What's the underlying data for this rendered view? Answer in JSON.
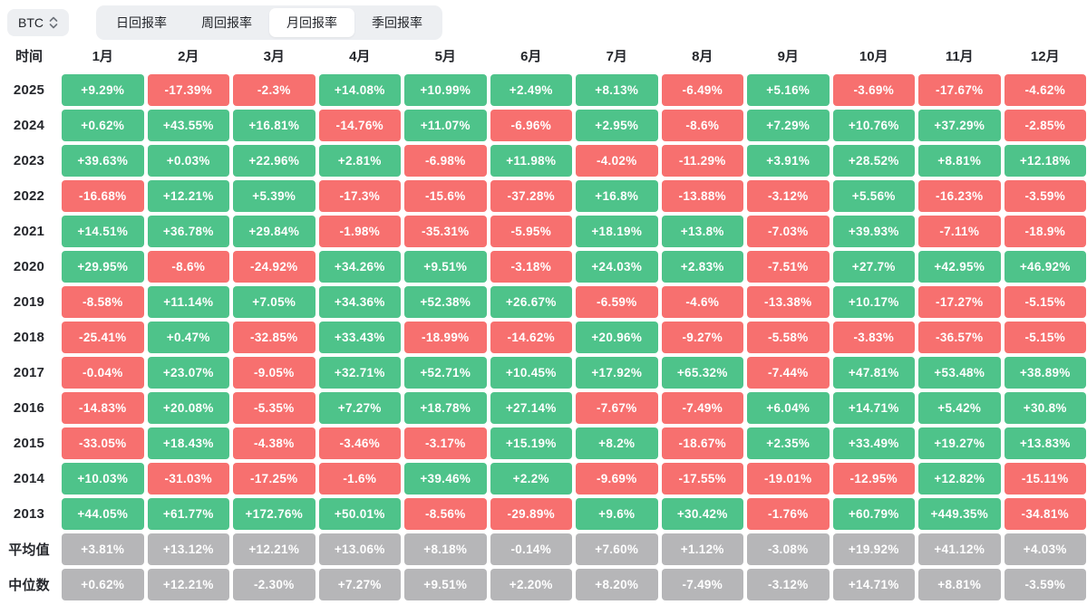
{
  "toolbar": {
    "coin_selector": {
      "label": "BTC"
    },
    "tabs": [
      {
        "label": "日回报率",
        "active": false
      },
      {
        "label": "周回报率",
        "active": false
      },
      {
        "label": "月回报率",
        "active": true
      },
      {
        "label": "季回报率",
        "active": false
      }
    ]
  },
  "table": {
    "time_header": "时间",
    "months": [
      "1月",
      "2月",
      "3月",
      "4月",
      "5月",
      "6月",
      "7月",
      "8月",
      "9月",
      "10月",
      "11月",
      "12月"
    ],
    "rows": [
      {
        "label": "2025",
        "type": "year",
        "values": [
          "+9.29%",
          "-17.39%",
          "-2.3%",
          "+14.08%",
          "+10.99%",
          "+2.49%",
          "+8.13%",
          "-6.49%",
          "+5.16%",
          "-3.69%",
          "-17.67%",
          "-4.62%"
        ]
      },
      {
        "label": "2024",
        "type": "year",
        "values": [
          "+0.62%",
          "+43.55%",
          "+16.81%",
          "-14.76%",
          "+11.07%",
          "-6.96%",
          "+2.95%",
          "-8.6%",
          "+7.29%",
          "+10.76%",
          "+37.29%",
          "-2.85%"
        ]
      },
      {
        "label": "2023",
        "type": "year",
        "values": [
          "+39.63%",
          "+0.03%",
          "+22.96%",
          "+2.81%",
          "-6.98%",
          "+11.98%",
          "-4.02%",
          "-11.29%",
          "+3.91%",
          "+28.52%",
          "+8.81%",
          "+12.18%"
        ]
      },
      {
        "label": "2022",
        "type": "year",
        "values": [
          "-16.68%",
          "+12.21%",
          "+5.39%",
          "-17.3%",
          "-15.6%",
          "-37.28%",
          "+16.8%",
          "-13.88%",
          "-3.12%",
          "+5.56%",
          "-16.23%",
          "-3.59%"
        ]
      },
      {
        "label": "2021",
        "type": "year",
        "values": [
          "+14.51%",
          "+36.78%",
          "+29.84%",
          "-1.98%",
          "-35.31%",
          "-5.95%",
          "+18.19%",
          "+13.8%",
          "-7.03%",
          "+39.93%",
          "-7.11%",
          "-18.9%"
        ]
      },
      {
        "label": "2020",
        "type": "year",
        "values": [
          "+29.95%",
          "-8.6%",
          "-24.92%",
          "+34.26%",
          "+9.51%",
          "-3.18%",
          "+24.03%",
          "+2.83%",
          "-7.51%",
          "+27.7%",
          "+42.95%",
          "+46.92%"
        ]
      },
      {
        "label": "2019",
        "type": "year",
        "values": [
          "-8.58%",
          "+11.14%",
          "+7.05%",
          "+34.36%",
          "+52.38%",
          "+26.67%",
          "-6.59%",
          "-4.6%",
          "-13.38%",
          "+10.17%",
          "-17.27%",
          "-5.15%"
        ]
      },
      {
        "label": "2018",
        "type": "year",
        "values": [
          "-25.41%",
          "+0.47%",
          "-32.85%",
          "+33.43%",
          "-18.99%",
          "-14.62%",
          "+20.96%",
          "-9.27%",
          "-5.58%",
          "-3.83%",
          "-36.57%",
          "-5.15%"
        ]
      },
      {
        "label": "2017",
        "type": "year",
        "values": [
          "-0.04%",
          "+23.07%",
          "-9.05%",
          "+32.71%",
          "+52.71%",
          "+10.45%",
          "+17.92%",
          "+65.32%",
          "-7.44%",
          "+47.81%",
          "+53.48%",
          "+38.89%"
        ]
      },
      {
        "label": "2016",
        "type": "year",
        "values": [
          "-14.83%",
          "+20.08%",
          "-5.35%",
          "+7.27%",
          "+18.78%",
          "+27.14%",
          "-7.67%",
          "-7.49%",
          "+6.04%",
          "+14.71%",
          "+5.42%",
          "+30.8%"
        ]
      },
      {
        "label": "2015",
        "type": "year",
        "values": [
          "-33.05%",
          "+18.43%",
          "-4.38%",
          "-3.46%",
          "-3.17%",
          "+15.19%",
          "+8.2%",
          "-18.67%",
          "+2.35%",
          "+33.49%",
          "+19.27%",
          "+13.83%"
        ]
      },
      {
        "label": "2014",
        "type": "year",
        "values": [
          "+10.03%",
          "-31.03%",
          "-17.25%",
          "-1.6%",
          "+39.46%",
          "+2.2%",
          "-9.69%",
          "-17.55%",
          "-19.01%",
          "-12.95%",
          "+12.82%",
          "-15.11%"
        ]
      },
      {
        "label": "2013",
        "type": "year",
        "values": [
          "+44.05%",
          "+61.77%",
          "+172.76%",
          "+50.01%",
          "-8.56%",
          "-29.89%",
          "+9.6%",
          "+30.42%",
          "-1.76%",
          "+60.79%",
          "+449.35%",
          "-34.81%"
        ]
      },
      {
        "label": "平均值",
        "type": "summary",
        "values": [
          "+3.81%",
          "+13.12%",
          "+12.21%",
          "+13.06%",
          "+8.18%",
          "-0.14%",
          "+7.60%",
          "+1.12%",
          "-3.08%",
          "+19.92%",
          "+41.12%",
          "+4.03%"
        ]
      },
      {
        "label": "中位数",
        "type": "summary",
        "values": [
          "+0.62%",
          "+12.21%",
          "-2.30%",
          "+7.27%",
          "+9.51%",
          "+2.20%",
          "+8.20%",
          "-7.49%",
          "-3.12%",
          "+14.71%",
          "+8.81%",
          "-3.59%"
        ]
      }
    ]
  },
  "colors": {
    "positive": "#4ec38a",
    "negative": "#f7706f",
    "summary": "#b6b6b8"
  }
}
